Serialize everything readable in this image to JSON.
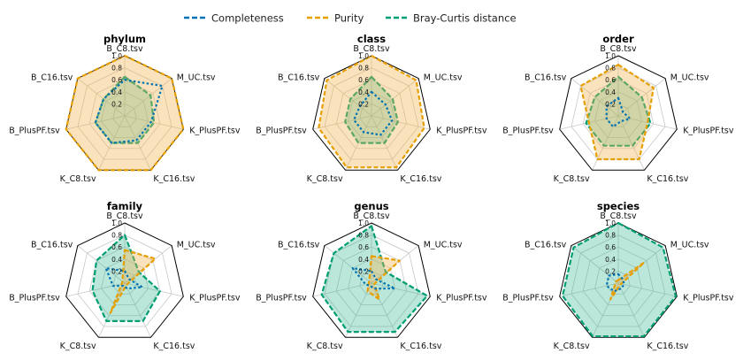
{
  "legend": {
    "items": [
      {
        "label": "Completeness",
        "color": "#0072B2"
      },
      {
        "label": "Purity",
        "color": "#E69F00"
      },
      {
        "label": "Bray-Curtis distance",
        "color": "#009E73"
      }
    ]
  },
  "chart_data": [
    {
      "type": "radar",
      "title": "phylum",
      "rlim": [
        0,
        1
      ],
      "ticks": [
        "0.2",
        "0.4",
        "0.6",
        "0.8",
        "1.0"
      ],
      "axes": [
        "B_C8.tsv",
        "M_UC.tsv",
        "K_PlusPF.tsv",
        "K_C16.tsv",
        "K_C8.tsv",
        "B_PlusPF.tsv",
        "B_C16.tsv"
      ],
      "series": [
        {
          "name": "Completeness",
          "values": [
            0.6,
            0.8,
            0.45,
            0.45,
            0.5,
            0.5,
            0.45
          ]
        },
        {
          "name": "Purity",
          "values": [
            1.0,
            1.0,
            1.0,
            1.0,
            1.0,
            1.0,
            1.0
          ]
        },
        {
          "name": "Bray-Curtis distance",
          "values": [
            0.65,
            0.55,
            0.5,
            0.5,
            0.5,
            0.5,
            0.45
          ]
        }
      ]
    },
    {
      "type": "radar",
      "title": "class",
      "rlim": [
        0,
        1
      ],
      "ticks": [
        "0.2",
        "0.4",
        "0.6",
        "0.8",
        "1.0"
      ],
      "axes": [
        "B_C8.tsv",
        "M_UC.tsv",
        "K_PlusPF.tsv",
        "K_C16.tsv",
        "K_C8.tsv",
        "B_PlusPF.tsv",
        "B_C16.tsv"
      ],
      "series": [
        {
          "name": "Completeness",
          "values": [
            0.4,
            0.3,
            0.35,
            0.35,
            0.3,
            0.3,
            0.25
          ]
        },
        {
          "name": "Purity",
          "values": [
            1.0,
            0.95,
            0.9,
            0.95,
            0.95,
            0.9,
            0.95
          ]
        },
        {
          "name": "Bray-Curtis distance",
          "values": [
            0.65,
            0.45,
            0.45,
            0.5,
            0.5,
            0.45,
            0.45
          ]
        }
      ]
    },
    {
      "type": "radar",
      "title": "order",
      "rlim": [
        0,
        1
      ],
      "ticks": [
        "0.2",
        "0.4",
        "0.6",
        "0.8",
        "1.0"
      ],
      "axes": [
        "B_C8.tsv",
        "M_UC.tsv",
        "K_PlusPF.tsv",
        "K_C16.tsv",
        "K_C8.tsv",
        "B_PlusPF.tsv",
        "B_C16.tsv"
      ],
      "series": [
        {
          "name": "Completeness",
          "values": [
            0.3,
            0.1,
            0.2,
            0.1,
            0.2,
            0.2,
            0.25
          ]
        },
        {
          "name": "Purity",
          "values": [
            0.85,
            0.75,
            0.5,
            0.8,
            0.8,
            0.5,
            0.8
          ]
        },
        {
          "name": "Bray-Curtis distance",
          "values": [
            0.65,
            0.5,
            0.55,
            0.55,
            0.55,
            0.55,
            0.5
          ]
        }
      ]
    },
    {
      "type": "radar",
      "title": "family",
      "rlim": [
        0,
        1
      ],
      "ticks": [
        "0.2",
        "0.4",
        "0.6",
        "0.8",
        "1.0"
      ],
      "axes": [
        "B_C8.tsv",
        "M_UC.tsv",
        "K_PlusPF.tsv",
        "K_C16.tsv",
        "K_C8.tsv",
        "B_PlusPF.tsv",
        "B_C16.tsv"
      ],
      "series": [
        {
          "name": "Completeness",
          "values": [
            0.2,
            0.1,
            0.3,
            0.1,
            0.05,
            0.2,
            0.4
          ]
        },
        {
          "name": "Purity",
          "values": [
            0.55,
            0.65,
            0.05,
            0.05,
            0.55,
            0.05,
            0.05
          ]
        },
        {
          "name": "Bray-Curtis distance",
          "values": [
            0.8,
            0.3,
            0.6,
            0.7,
            0.7,
            0.55,
            0.6
          ]
        }
      ]
    },
    {
      "type": "radar",
      "title": "genus",
      "rlim": [
        0,
        1
      ],
      "ticks": [
        "0.2",
        "0.4",
        "0.6",
        "0.8",
        "1.0"
      ],
      "axes": [
        "B_C8.tsv",
        "M_UC.tsv",
        "K_PlusPF.tsv",
        "K_C16.tsv",
        "K_C8.tsv",
        "B_PlusPF.tsv",
        "B_C16.tsv"
      ],
      "series": [
        {
          "name": "Completeness",
          "values": [
            0.2,
            0.1,
            0.4,
            0.1,
            0.05,
            0.1,
            0.4
          ]
        },
        {
          "name": "Purity",
          "values": [
            0.45,
            0.6,
            0.05,
            0.3,
            0.15,
            0.05,
            0.05
          ]
        },
        {
          "name": "Bray-Curtis distance",
          "values": [
            0.95,
            0.3,
            0.95,
            0.9,
            0.9,
            0.85,
            0.8
          ]
        }
      ]
    },
    {
      "type": "radar",
      "title": "species",
      "rlim": [
        0,
        1
      ],
      "ticks": [
        "0.2",
        "0.4",
        "0.6",
        "0.8",
        "1.0"
      ],
      "axes": [
        "B_C8.tsv",
        "M_UC.tsv",
        "K_PlusPF.tsv",
        "K_C16.tsv",
        "K_C8.tsv",
        "B_PlusPF.tsv",
        "B_C16.tsv"
      ],
      "series": [
        {
          "name": "Completeness",
          "values": [
            0.15,
            0.1,
            0.1,
            0.1,
            0.15,
            0.2,
            0.2
          ]
        },
        {
          "name": "Purity",
          "values": [
            0.05,
            0.55,
            0.05,
            0.05,
            0.3,
            0.05,
            0.05
          ]
        },
        {
          "name": "Bray-Curtis distance",
          "values": [
            1.0,
            0.95,
            0.98,
            0.98,
            0.98,
            0.95,
            0.95
          ]
        }
      ]
    }
  ]
}
